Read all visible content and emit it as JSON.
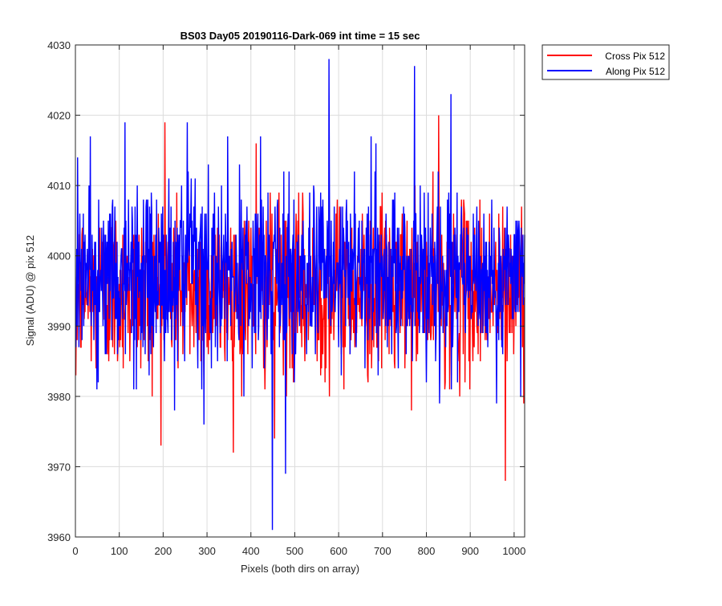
{
  "chart_data": {
    "type": "line",
    "title": "BS03 Day05 20190116-Dark-069 int time = 15 sec",
    "xlabel": "Pixels (both dirs on array)",
    "ylabel": "Signal (ADU) @ pix 512",
    "xlim": [
      0,
      1024
    ],
    "ylim": [
      3960,
      4030
    ],
    "xticks": [
      0,
      100,
      200,
      300,
      400,
      500,
      600,
      700,
      800,
      900,
      1000
    ],
    "yticks": [
      3960,
      3970,
      3980,
      3990,
      4000,
      4010,
      4020,
      4030
    ],
    "grid": true,
    "legend_location": "outside-top-right",
    "series": [
      {
        "name": "Cross Pix 512",
        "color": "#ff0000",
        "mean": 3995,
        "noise_std": 6,
        "n_points": 1024,
        "notable_points": [
          {
            "x": 203,
            "y": 4019
          },
          {
            "x": 827,
            "y": 4020
          },
          {
            "x": 411,
            "y": 4016
          },
          {
            "x": 979,
            "y": 3968
          },
          {
            "x": 453,
            "y": 3974
          },
          {
            "x": 194,
            "y": 3973
          },
          {
            "x": 0,
            "y": 3983
          }
        ]
      },
      {
        "name": "Along Pix 512",
        "color": "#0000ff",
        "mean": 3997,
        "noise_std": 6.5,
        "n_points": 1024,
        "notable_points": [
          {
            "x": 577,
            "y": 4028
          },
          {
            "x": 772,
            "y": 4027
          },
          {
            "x": 855,
            "y": 4023
          },
          {
            "x": 448,
            "y": 3961
          },
          {
            "x": 478,
            "y": 3969
          },
          {
            "x": 112,
            "y": 4019
          },
          {
            "x": 254,
            "y": 4019
          },
          {
            "x": 4,
            "y": 4014
          },
          {
            "x": 1014,
            "y": 3980
          },
          {
            "x": 1024,
            "y": 4003
          }
        ]
      }
    ]
  }
}
